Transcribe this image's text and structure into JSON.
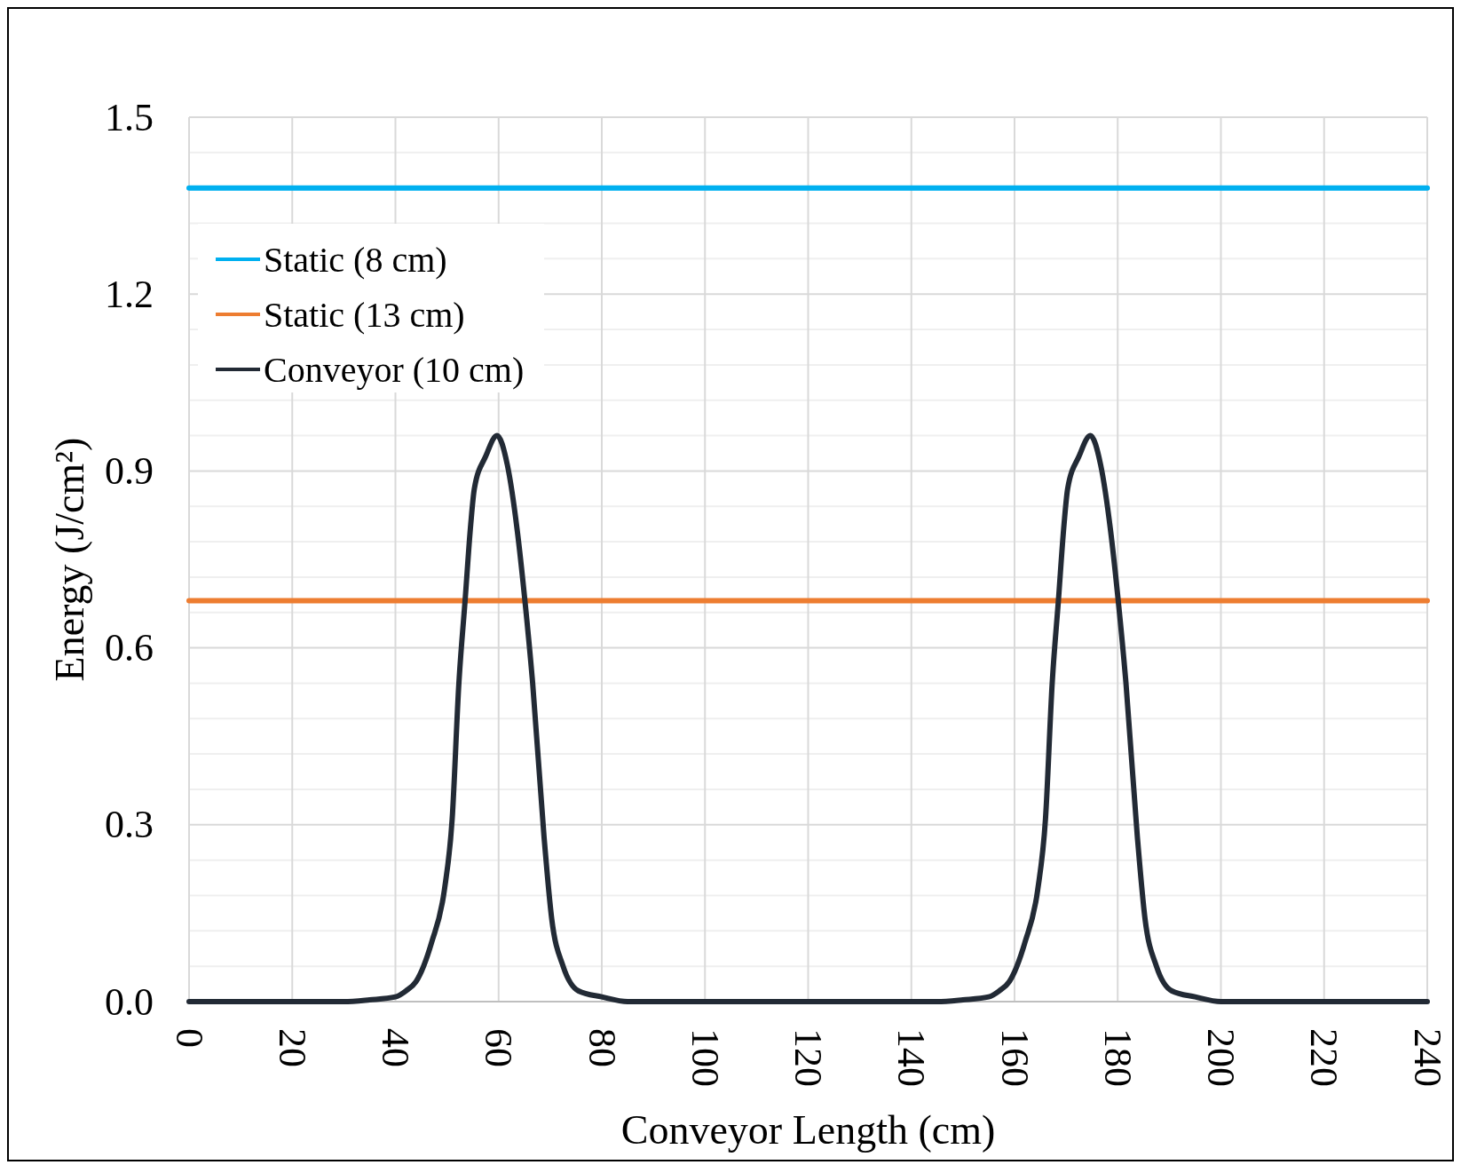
{
  "chart_data": {
    "type": "line",
    "xlabel": "Conveyor Length (cm)",
    "ylabel": "Energy (J/cm²)",
    "xlim": [
      0,
      240
    ],
    "xticks": [
      0,
      20,
      40,
      60,
      80,
      100,
      120,
      140,
      160,
      180,
      200,
      220,
      240
    ],
    "ylim": [
      0,
      1.5
    ],
    "yticks": [
      {
        "value": 0,
        "label": "0.0"
      },
      {
        "value": 0.06,
        "label": null
      },
      {
        "value": 0.12,
        "label": null
      },
      {
        "value": 0.18,
        "label": null
      },
      {
        "value": 0.24,
        "label": null
      },
      0.3,
      {
        "value": 0.36,
        "label": null
      },
      {
        "value": 0.42,
        "label": null
      },
      {
        "value": 0.48,
        "label": null
      },
      {
        "value": 0.54,
        "label": null
      },
      0.6,
      {
        "value": 0.66,
        "label": null
      },
      {
        "value": 0.72,
        "label": null
      },
      {
        "value": 0.78,
        "label": null
      },
      {
        "value": 0.84,
        "label": null
      },
      0.9,
      {
        "value": 0.96,
        "label": null
      },
      {
        "value": 1.02,
        "label": null
      },
      {
        "value": 1.08,
        "label": null
      },
      {
        "value": 1.14,
        "label": null
      },
      1.2,
      {
        "value": 1.26,
        "label": null
      },
      {
        "value": 1.32,
        "label": null
      },
      {
        "value": 1.38,
        "label": null
      },
      {
        "value": 1.44,
        "label": null
      },
      1.5
    ],
    "grid": true,
    "legend": "top left",
    "marker": "none",
    "line_style": "solid",
    "series": [
      {
        "name": "Static (8 cm)",
        "color": "#00b0f0",
        "x": [
          0,
          240
        ],
        "values": [
          1.38,
          1.38
        ]
      },
      {
        "name": "Static (13 cm)",
        "color": "#ed7d31",
        "x": [
          0,
          240
        ],
        "values": [
          0.68,
          0.68
        ]
      },
      {
        "name": "Conveyor (10 cm)",
        "color": "#222a35",
        "x": [
          0,
          30,
          35,
          40,
          42,
          44,
          47,
          49.5,
          51,
          52.3,
          53.5,
          54.6,
          55.3,
          57.5,
          59.7,
          61.7,
          63.6,
          65.1,
          66.6,
          68.8,
          70.3,
          72.5,
          75.5,
          80,
          85,
          145,
          150,
          155,
          157,
          159,
          162,
          164.5,
          166,
          167.3,
          168.5,
          169.6,
          170.3,
          172.5,
          174.7,
          176.7,
          178.6,
          180.1,
          181.6,
          183.8,
          185.3,
          187.5,
          190.5,
          195,
          200,
          240
        ],
        "values": [
          0,
          0,
          0.003,
          0.008,
          0.018,
          0.034,
          0.1,
          0.19,
          0.31,
          0.54,
          0.68,
          0.81,
          0.87,
          0.925,
          0.96,
          0.91,
          0.8,
          0.68,
          0.54,
          0.28,
          0.14,
          0.06,
          0.018,
          0.008,
          0,
          0,
          0.003,
          0.008,
          0.018,
          0.034,
          0.1,
          0.19,
          0.31,
          0.54,
          0.68,
          0.81,
          0.87,
          0.925,
          0.96,
          0.91,
          0.8,
          0.68,
          0.54,
          0.28,
          0.14,
          0.06,
          0.018,
          0.008,
          0,
          0
        ]
      }
    ]
  }
}
